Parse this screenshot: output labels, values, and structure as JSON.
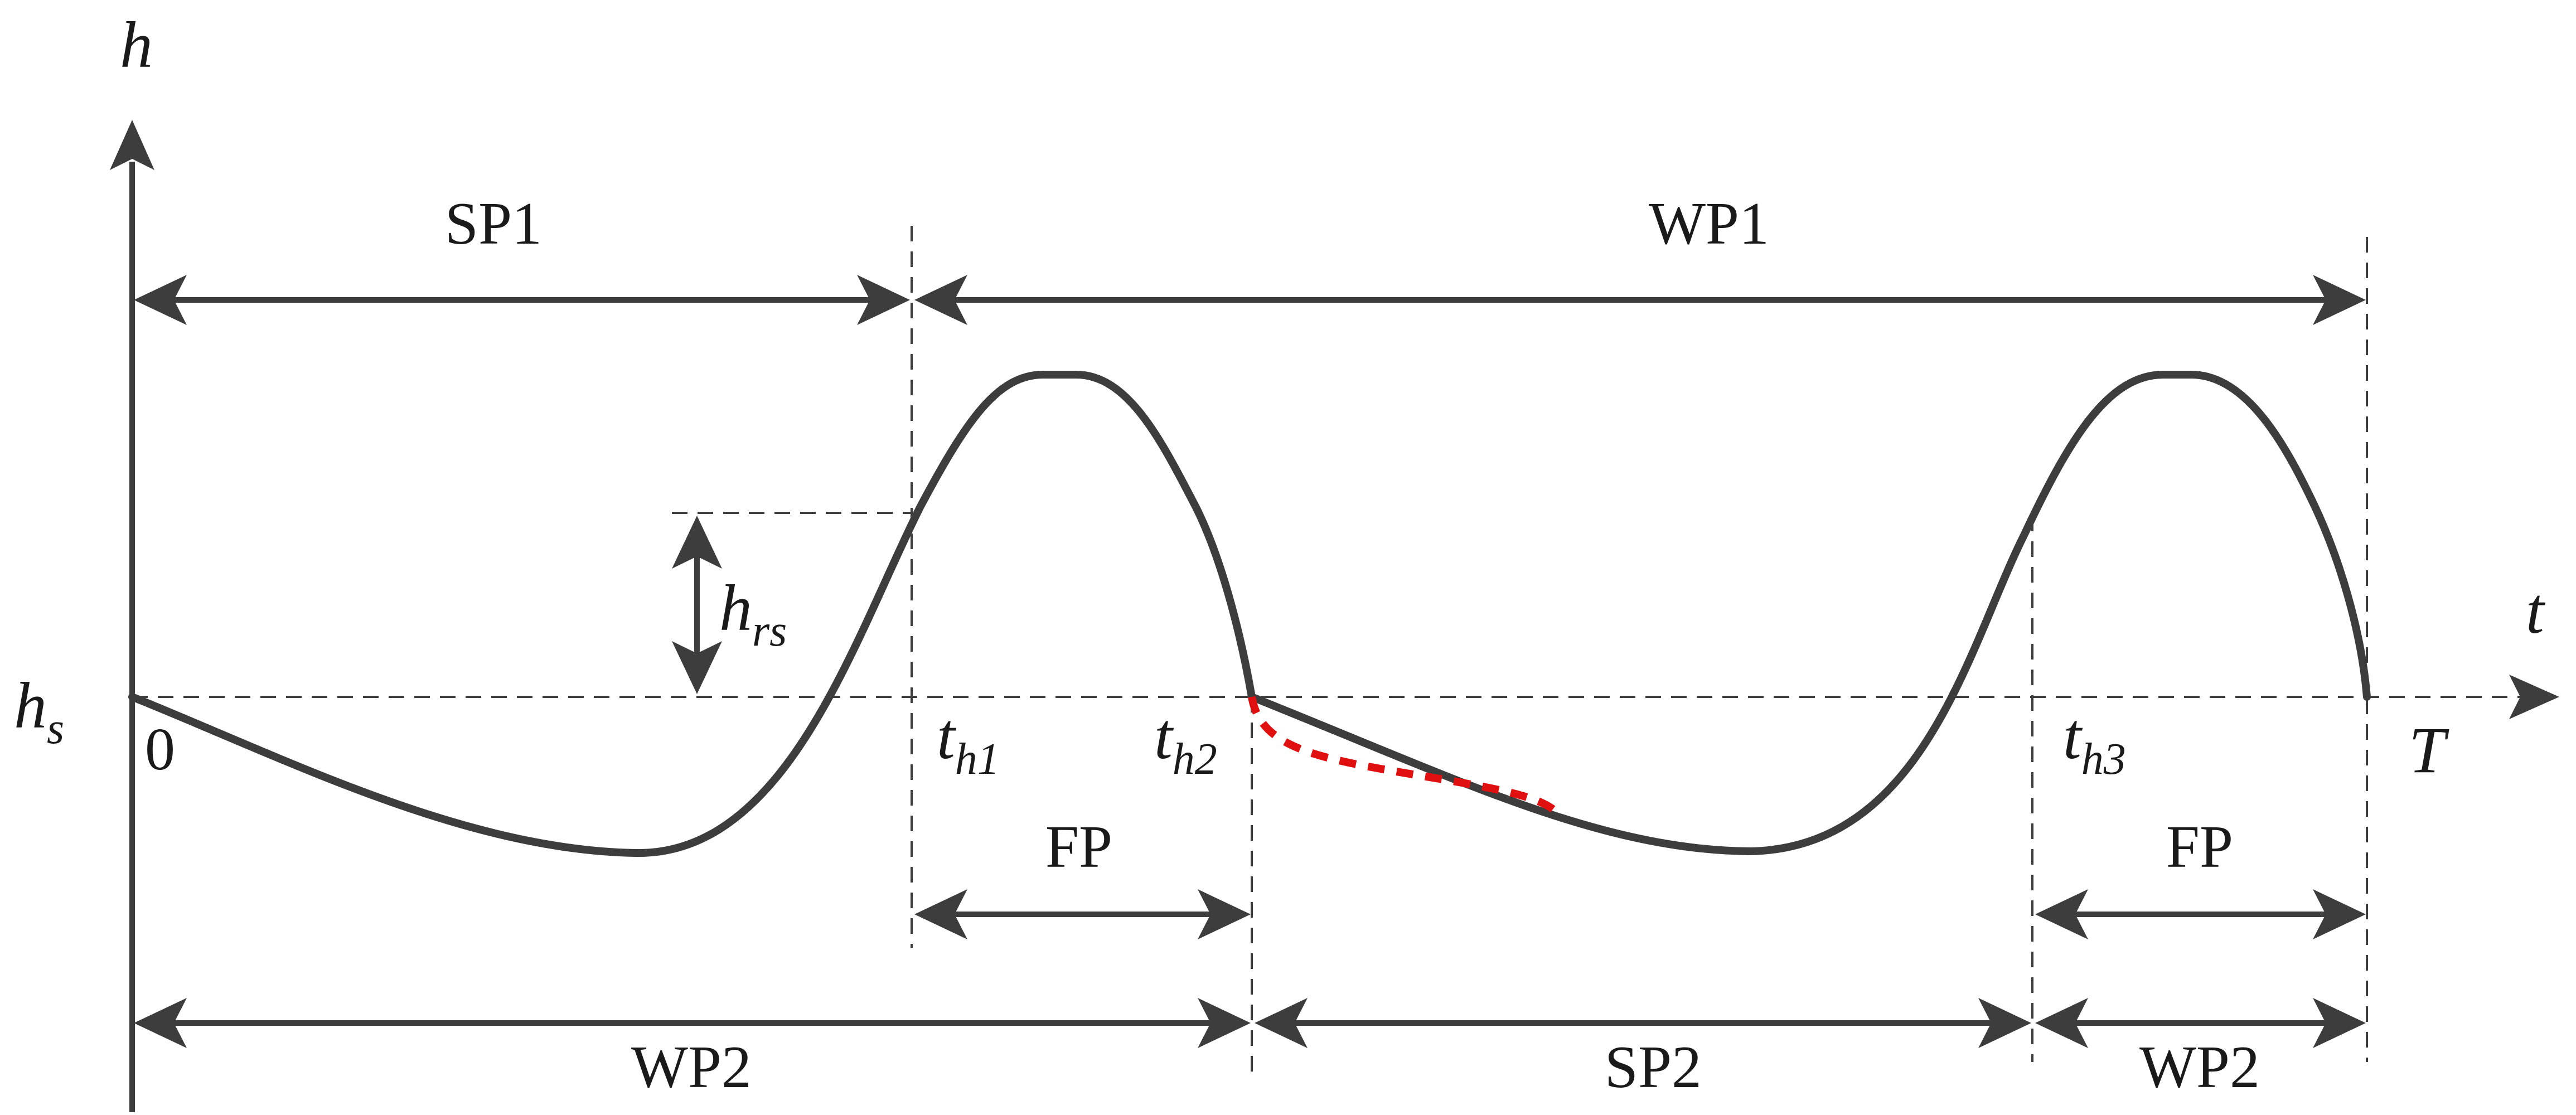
{
  "axes": {
    "y_label": "h",
    "x_label": "t",
    "reference_level_label": {
      "main": "h",
      "sub": "s"
    },
    "origin_label": "0",
    "end_label": "T"
  },
  "time_markers": [
    {
      "main": "t",
      "sub": "h1"
    },
    {
      "main": "t",
      "sub": "h2"
    },
    {
      "main": "t",
      "sub": "h3"
    }
  ],
  "amplitude_marker": {
    "main": "h",
    "sub": "rs"
  },
  "periods": {
    "top": [
      {
        "label": "SP1"
      },
      {
        "label": "WP1"
      }
    ],
    "middle": [
      {
        "label": "FP"
      },
      {
        "label": "FP"
      }
    ],
    "bottom": [
      {
        "label": "WP2"
      },
      {
        "label": "SP2"
      },
      {
        "label": "WP2"
      }
    ]
  },
  "colors": {
    "curve": "#3d3d3d",
    "alternate_path": "#e01010",
    "text": "#1a1a1a"
  }
}
